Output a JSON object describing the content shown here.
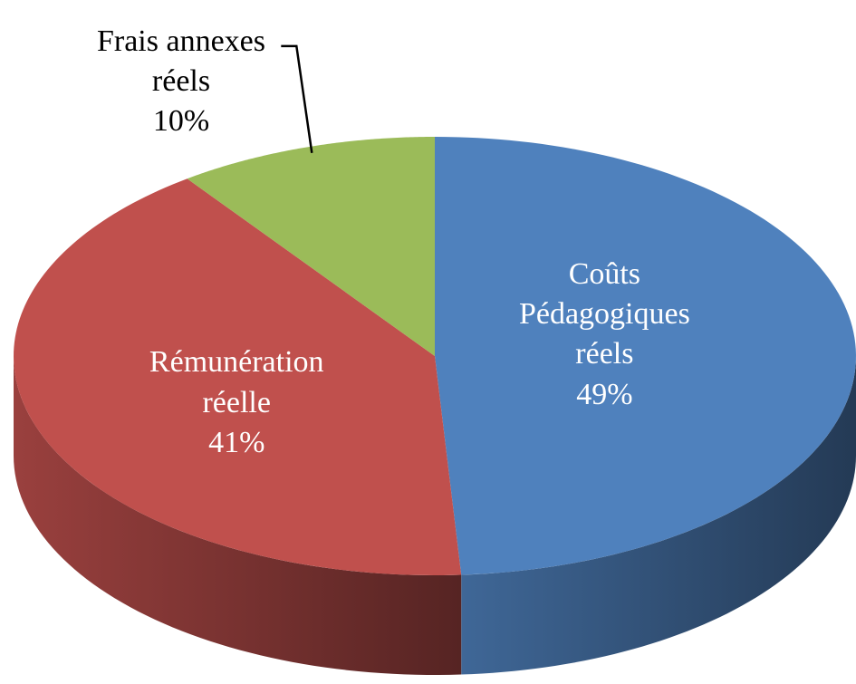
{
  "chart_data": {
    "type": "pie",
    "categories": [
      "Coûts Pédagogiques réels",
      "Rémunération réelle",
      "Frais annexes réels"
    ],
    "values": [
      49,
      41,
      10
    ],
    "value_labels": [
      "49%",
      "41%",
      "10%"
    ],
    "colors": [
      "#4f81bd",
      "#c0504d",
      "#9bbb59"
    ],
    "start_angle": 0,
    "direction": "clockwise",
    "three_d": true
  }
}
